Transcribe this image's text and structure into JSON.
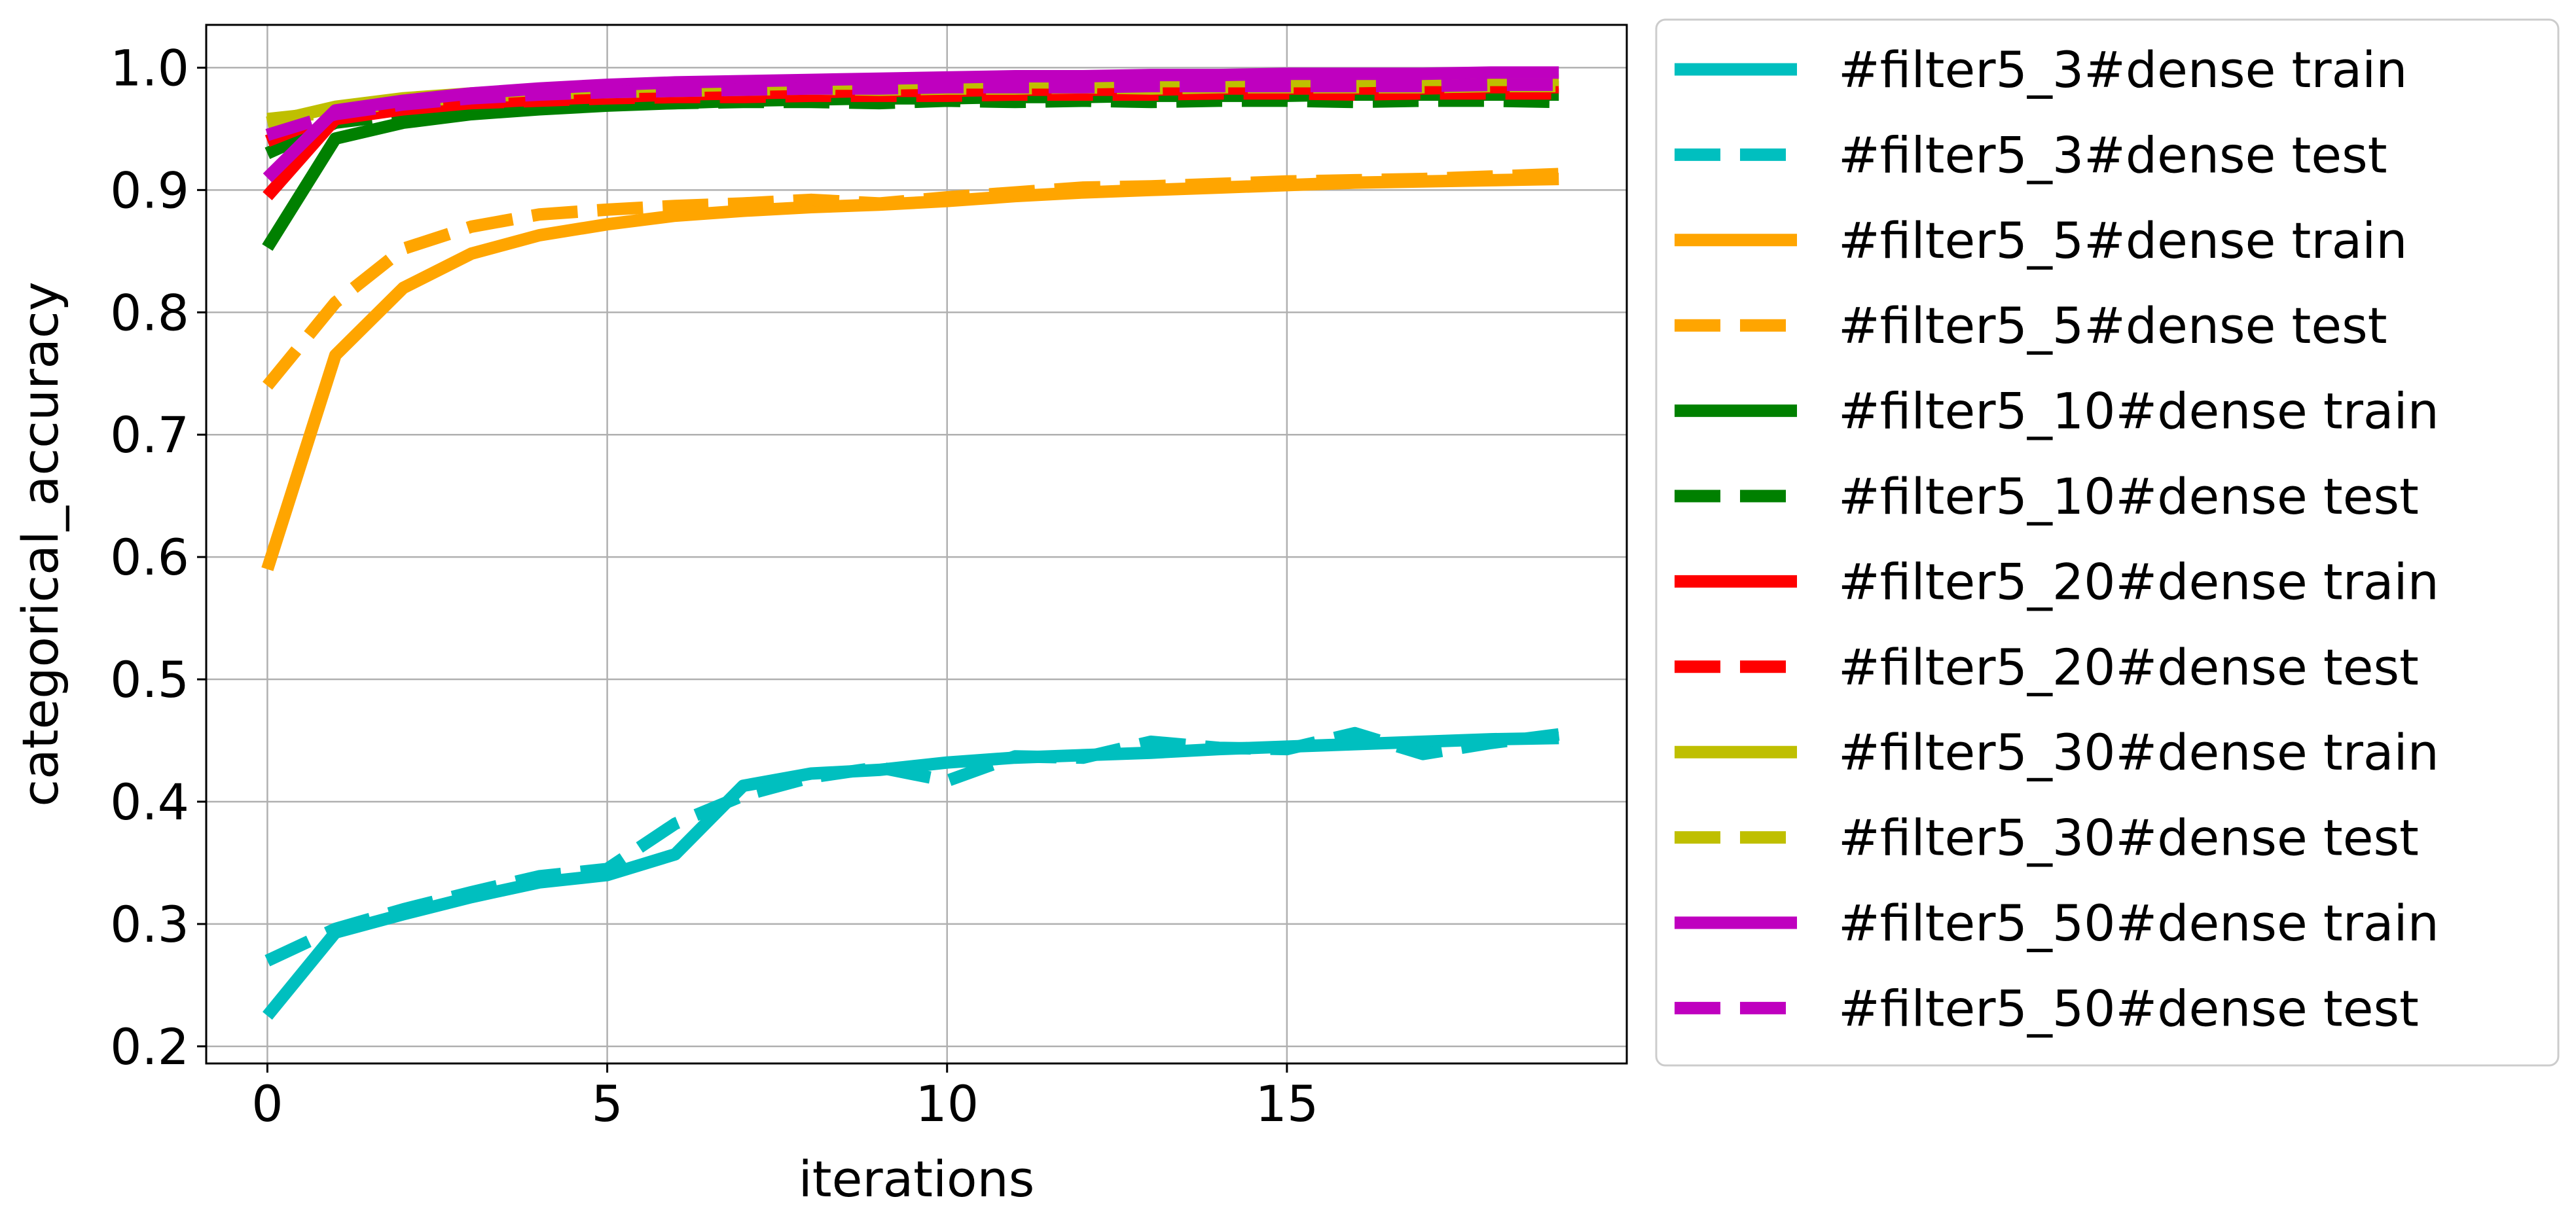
{
  "chart_data": {
    "type": "line",
    "xlabel": "iterations",
    "ylabel": "categorical_accuracy",
    "xlim": [
      -0.9,
      20.0
    ],
    "ylim": [
      0.186,
      1.035
    ],
    "xticks": [
      0,
      5,
      10,
      15
    ],
    "yticks": [
      0.2,
      0.3,
      0.4,
      0.5,
      0.6,
      0.7,
      0.8,
      0.9,
      1.0
    ],
    "xtick_labels": [
      "0",
      "5",
      "10",
      "15"
    ],
    "ytick_labels": [
      "0.2",
      "0.3",
      "0.4",
      "0.5",
      "0.6",
      "0.7",
      "0.8",
      "0.9",
      "1.0"
    ],
    "grid": true,
    "legend_position": "outside-right",
    "x": [
      0,
      1,
      2,
      3,
      4,
      5,
      6,
      7,
      8,
      9,
      10,
      11,
      12,
      13,
      14,
      15,
      16,
      17,
      18,
      19
    ],
    "series": [
      {
        "name": "#filter5_3#dense train",
        "color": "#00bfbf",
        "style": "solid",
        "values": [
          0.225,
          0.293,
          0.308,
          0.322,
          0.334,
          0.34,
          0.357,
          0.413,
          0.423,
          0.426,
          0.432,
          0.436,
          0.438,
          0.44,
          0.443,
          0.445,
          0.447,
          0.449,
          0.451,
          0.452
        ]
      },
      {
        "name": "#filter5_3#dense test",
        "color": "#00bfbf",
        "style": "dashed",
        "values": [
          0.27,
          0.296,
          0.312,
          0.326,
          0.339,
          0.345,
          0.382,
          0.405,
          0.42,
          0.428,
          0.417,
          0.437,
          0.436,
          0.449,
          0.444,
          0.443,
          0.456,
          0.439,
          0.448,
          0.455
        ]
      },
      {
        "name": "#filter5_5#dense train",
        "color": "#ffa500",
        "style": "solid",
        "values": [
          0.59,
          0.765,
          0.82,
          0.848,
          0.863,
          0.872,
          0.879,
          0.883,
          0.886,
          0.888,
          0.891,
          0.895,
          0.898,
          0.9,
          0.902,
          0.904,
          0.906,
          0.907,
          0.908,
          0.909
        ]
      },
      {
        "name": "#filter5_5#dense test",
        "color": "#ffa500",
        "style": "dashed",
        "values": [
          0.74,
          0.808,
          0.852,
          0.87,
          0.88,
          0.884,
          0.887,
          0.889,
          0.892,
          0.889,
          0.894,
          0.898,
          0.902,
          0.903,
          0.905,
          0.907,
          0.908,
          0.909,
          0.911,
          0.913
        ]
      },
      {
        "name": "#filter5_10#dense train",
        "color": "#008000",
        "style": "solid",
        "values": [
          0.853,
          0.942,
          0.955,
          0.962,
          0.966,
          0.969,
          0.971,
          0.973,
          0.974,
          0.975,
          0.975,
          0.976,
          0.976,
          0.977,
          0.977,
          0.977,
          0.978,
          0.978,
          0.978,
          0.978
        ]
      },
      {
        "name": "#filter5_10#dense test",
        "color": "#008000",
        "style": "dashed",
        "values": [
          0.93,
          0.955,
          0.962,
          0.966,
          0.968,
          0.97,
          0.971,
          0.972,
          0.972,
          0.971,
          0.973,
          0.972,
          0.973,
          0.972,
          0.973,
          0.973,
          0.972,
          0.973,
          0.973,
          0.972
        ]
      },
      {
        "name": "#filter5_20#dense train",
        "color": "#ff0000",
        "style": "solid",
        "values": [
          0.895,
          0.958,
          0.966,
          0.971,
          0.974,
          0.976,
          0.978,
          0.979,
          0.98,
          0.981,
          0.981,
          0.982,
          0.982,
          0.982,
          0.983,
          0.983,
          0.983,
          0.983,
          0.984,
          0.984
        ]
      },
      {
        "name": "#filter5_20#dense test",
        "color": "#ff0000",
        "style": "dashed",
        "values": [
          0.94,
          0.962,
          0.968,
          0.971,
          0.973,
          0.975,
          0.976,
          0.976,
          0.977,
          0.977,
          0.977,
          0.978,
          0.978,
          0.978,
          0.979,
          0.979,
          0.978,
          0.979,
          0.979,
          0.979
        ]
      },
      {
        "name": "#filter5_30#dense train",
        "color": "#bfbf00",
        "style": "solid",
        "values": [
          0.955,
          0.968,
          0.975,
          0.979,
          0.982,
          0.984,
          0.985,
          0.986,
          0.987,
          0.987,
          0.988,
          0.988,
          0.988,
          0.989,
          0.989,
          0.989,
          0.989,
          0.99,
          0.99,
          0.99
        ]
      },
      {
        "name": "#filter5_30#dense test",
        "color": "#bfbf00",
        "style": "dashed",
        "values": [
          0.958,
          0.964,
          0.972,
          0.976,
          0.979,
          0.98,
          0.981,
          0.982,
          0.983,
          0.982,
          0.983,
          0.983,
          0.984,
          0.983,
          0.984,
          0.984,
          0.984,
          0.984,
          0.985,
          0.985
        ]
      },
      {
        "name": "#filter5_50#dense train",
        "color": "#bf00bf",
        "style": "solid",
        "values": [
          0.91,
          0.965,
          0.973,
          0.979,
          0.983,
          0.986,
          0.988,
          0.989,
          0.99,
          0.991,
          0.992,
          0.993,
          0.993,
          0.994,
          0.994,
          0.995,
          0.995,
          0.995,
          0.996,
          0.996
        ]
      },
      {
        "name": "#filter5_50#dense test",
        "color": "#bf00bf",
        "style": "dashed",
        "values": [
          0.945,
          0.962,
          0.97,
          0.975,
          0.978,
          0.98,
          0.981,
          0.982,
          0.983,
          0.983,
          0.984,
          0.984,
          0.984,
          0.985,
          0.985,
          0.985,
          0.985,
          0.985,
          0.986,
          0.986
        ]
      }
    ]
  }
}
